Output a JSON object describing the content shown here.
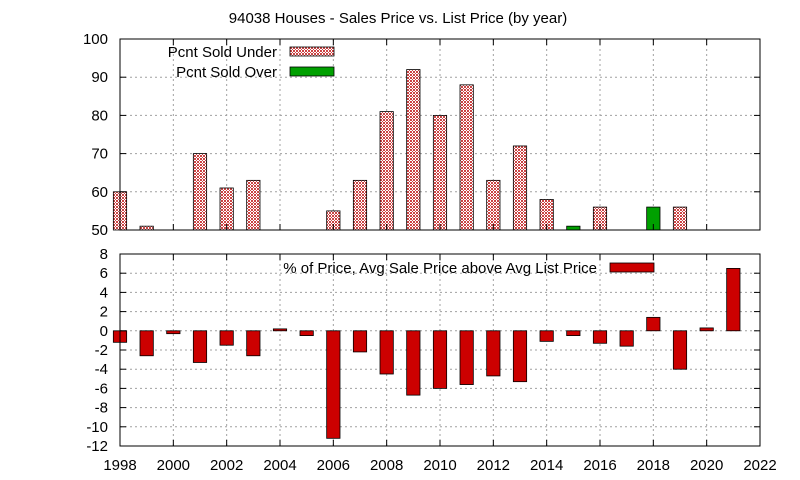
{
  "chart_data": {
    "title": "94038 Houses - Sales Price vs. List Price (by year)",
    "x_ticks": [
      "1998",
      "2000",
      "2002",
      "2004",
      "2006",
      "2008",
      "2010",
      "2012",
      "2014",
      "2016",
      "2018",
      "2020",
      "2022"
    ],
    "xlim": [
      1998,
      2022
    ],
    "panels": [
      {
        "type": "bar",
        "ylim": [
          50,
          100
        ],
        "y_ticks": [
          "50",
          "60",
          "70",
          "80",
          "90",
          "100"
        ],
        "legend_position": "top-left",
        "grid": true,
        "series": [
          {
            "name": "Pcnt Sold Under",
            "color": "#cc4444",
            "pattern": "checker",
            "points": [
              {
                "x": 1998,
                "y": 60
              },
              {
                "x": 1999,
                "y": 51
              },
              {
                "x": 2001,
                "y": 70
              },
              {
                "x": 2002,
                "y": 61
              },
              {
                "x": 2003,
                "y": 63
              },
              {
                "x": 2006,
                "y": 55
              },
              {
                "x": 2007,
                "y": 63
              },
              {
                "x": 2008,
                "y": 81
              },
              {
                "x": 2009,
                "y": 92
              },
              {
                "x": 2010,
                "y": 80
              },
              {
                "x": 2011,
                "y": 88
              },
              {
                "x": 2012,
                "y": 63
              },
              {
                "x": 2013,
                "y": 72
              },
              {
                "x": 2014,
                "y": 58
              },
              {
                "x": 2016,
                "y": 56
              },
              {
                "x": 2019,
                "y": 56
              }
            ]
          },
          {
            "name": "Pcnt Sold Over",
            "color": "#00a000",
            "pattern": "solid",
            "points": [
              {
                "x": 2015,
                "y": 51
              },
              {
                "x": 2018,
                "y": 56
              }
            ]
          }
        ]
      },
      {
        "type": "bar",
        "ylim": [
          -12,
          8
        ],
        "y_ticks": [
          "-12",
          "-10",
          "-8",
          "-6",
          "-4",
          "-2",
          "0",
          "2",
          "4",
          "6",
          "8"
        ],
        "legend_position": "top-right",
        "grid": true,
        "series": [
          {
            "name": "% of Price, Avg Sale Price above Avg List Price",
            "color": "#cc0000",
            "pattern": "solid",
            "points": [
              {
                "x": 1998,
                "y": -1.2
              },
              {
                "x": 1999,
                "y": -2.6
              },
              {
                "x": 2000,
                "y": -0.3
              },
              {
                "x": 2001,
                "y": -3.3
              },
              {
                "x": 2002,
                "y": -1.5
              },
              {
                "x": 2003,
                "y": -2.6
              },
              {
                "x": 2004,
                "y": 0.2
              },
              {
                "x": 2005,
                "y": -0.5
              },
              {
                "x": 2006,
                "y": -11.2
              },
              {
                "x": 2007,
                "y": -2.2
              },
              {
                "x": 2008,
                "y": -4.5
              },
              {
                "x": 2009,
                "y": -6.7
              },
              {
                "x": 2010,
                "y": -6.0
              },
              {
                "x": 2011,
                "y": -5.6
              },
              {
                "x": 2012,
                "y": -4.7
              },
              {
                "x": 2013,
                "y": -5.3
              },
              {
                "x": 2014,
                "y": -1.1
              },
              {
                "x": 2015,
                "y": -0.5
              },
              {
                "x": 2016,
                "y": -1.3
              },
              {
                "x": 2017,
                "y": -1.6
              },
              {
                "x": 2018,
                "y": 1.4
              },
              {
                "x": 2019,
                "y": -4.0
              },
              {
                "x": 2020,
                "y": 0.3
              },
              {
                "x": 2021,
                "y": 6.5
              }
            ]
          }
        ]
      }
    ]
  }
}
